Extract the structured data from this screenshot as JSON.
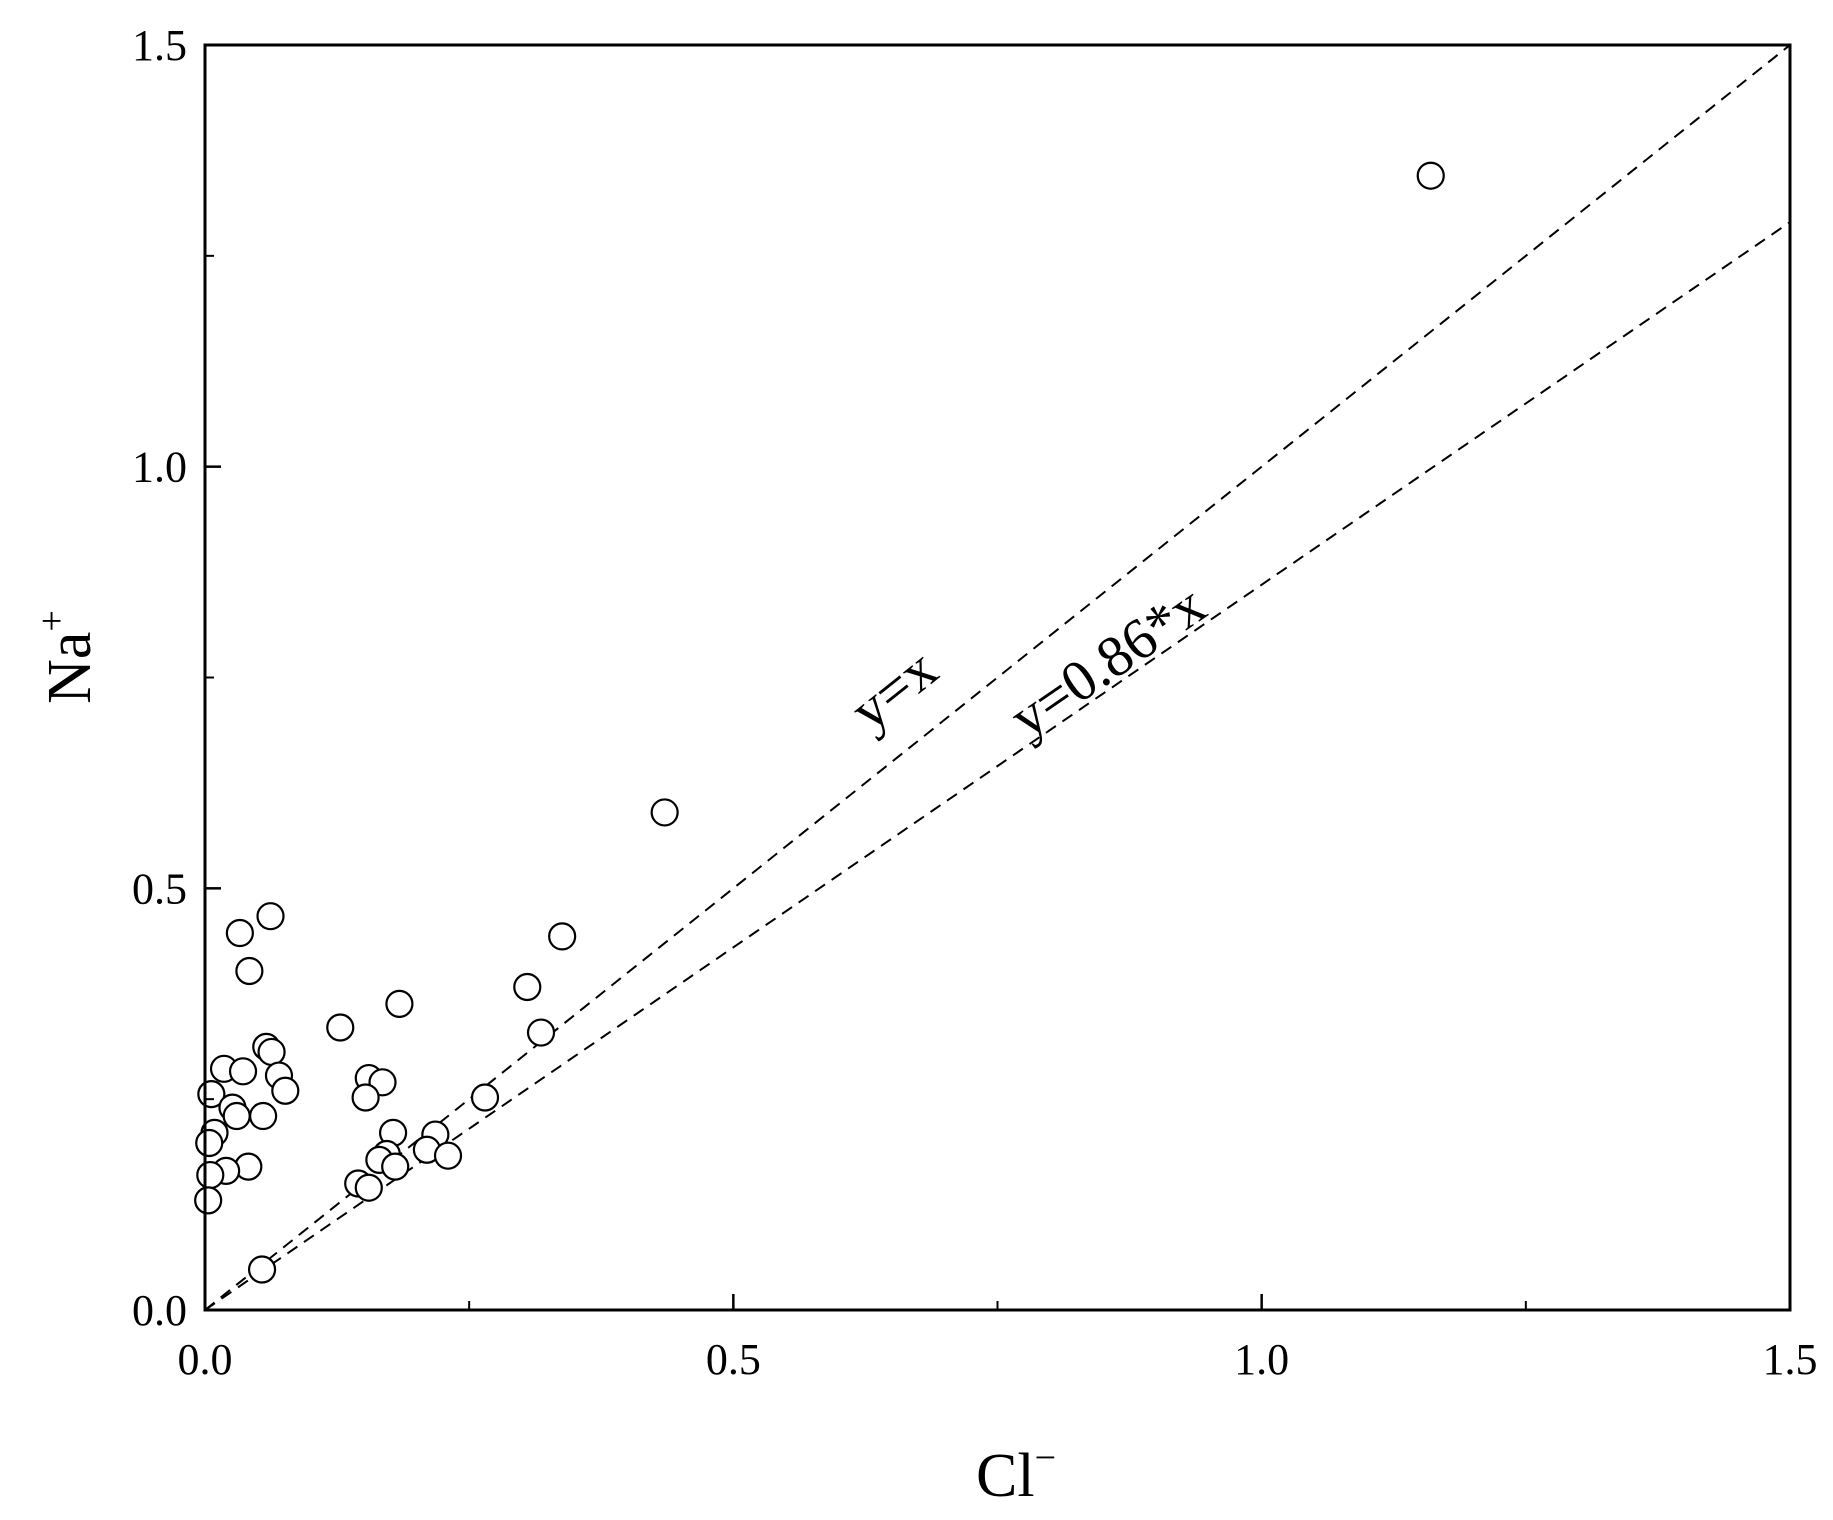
{
  "chart_data": {
    "type": "scatter",
    "xlabel": {
      "base": "Cl",
      "sup": "−"
    },
    "ylabel": {
      "base": "Na",
      "sup": "+"
    },
    "xlim": [
      0,
      1.5
    ],
    "ylim": [
      0,
      1.5
    ],
    "xticks": [
      {
        "value": 0.0,
        "label": "0.0"
      },
      {
        "value": 0.5,
        "label": "0.5"
      },
      {
        "value": 1.0,
        "label": "1.0"
      },
      {
        "value": 1.5,
        "label": "1.5"
      }
    ],
    "yticks": [
      {
        "value": 0.0,
        "label": "0.0"
      },
      {
        "value": 0.5,
        "label": "0.5"
      },
      {
        "value": 1.0,
        "label": "1.0"
      },
      {
        "value": 1.5,
        "label": "1.5"
      }
    ],
    "minor_ticks": [
      0.25,
      0.75,
      1.25
    ],
    "grid": false,
    "marker": "open-circle",
    "reference_lines": [
      {
        "slope": 1.0,
        "label": "y=x",
        "label_at_x": 0.68,
        "style": "dashed"
      },
      {
        "slope": 0.86,
        "label": "y=0.86*x",
        "label_at_x": 0.87,
        "style": "dashed"
      }
    ],
    "points": [
      {
        "x": 1.16,
        "y": 1.345
      },
      {
        "x": 0.435,
        "y": 0.59
      },
      {
        "x": 0.338,
        "y": 0.443
      },
      {
        "x": 0.305,
        "y": 0.383
      },
      {
        "x": 0.318,
        "y": 0.329
      },
      {
        "x": 0.184,
        "y": 0.363
      },
      {
        "x": 0.128,
        "y": 0.335
      },
      {
        "x": 0.062,
        "y": 0.467
      },
      {
        "x": 0.033,
        "y": 0.447
      },
      {
        "x": 0.042,
        "y": 0.402
      },
      {
        "x": 0.058,
        "y": 0.312
      },
      {
        "x": 0.063,
        "y": 0.306
      },
      {
        "x": 0.018,
        "y": 0.286
      },
      {
        "x": 0.036,
        "y": 0.283
      },
      {
        "x": 0.07,
        "y": 0.278
      },
      {
        "x": 0.076,
        "y": 0.26
      },
      {
        "x": 0.006,
        "y": 0.256
      },
      {
        "x": 0.026,
        "y": 0.24
      },
      {
        "x": 0.03,
        "y": 0.23
      },
      {
        "x": 0.055,
        "y": 0.23
      },
      {
        "x": 0.009,
        "y": 0.21
      },
      {
        "x": 0.004,
        "y": 0.198
      },
      {
        "x": 0.041,
        "y": 0.17
      },
      {
        "x": 0.02,
        "y": 0.165
      },
      {
        "x": 0.005,
        "y": 0.16
      },
      {
        "x": 0.003,
        "y": 0.13
      },
      {
        "x": 0.155,
        "y": 0.275
      },
      {
        "x": 0.168,
        "y": 0.27
      },
      {
        "x": 0.152,
        "y": 0.252
      },
      {
        "x": 0.265,
        "y": 0.252
      },
      {
        "x": 0.178,
        "y": 0.21
      },
      {
        "x": 0.218,
        "y": 0.208
      },
      {
        "x": 0.21,
        "y": 0.19
      },
      {
        "x": 0.172,
        "y": 0.185
      },
      {
        "x": 0.23,
        "y": 0.183
      },
      {
        "x": 0.165,
        "y": 0.178
      },
      {
        "x": 0.18,
        "y": 0.17
      },
      {
        "x": 0.145,
        "y": 0.15
      },
      {
        "x": 0.155,
        "y": 0.145
      },
      {
        "x": 0.054,
        "y": 0.048
      }
    ]
  }
}
